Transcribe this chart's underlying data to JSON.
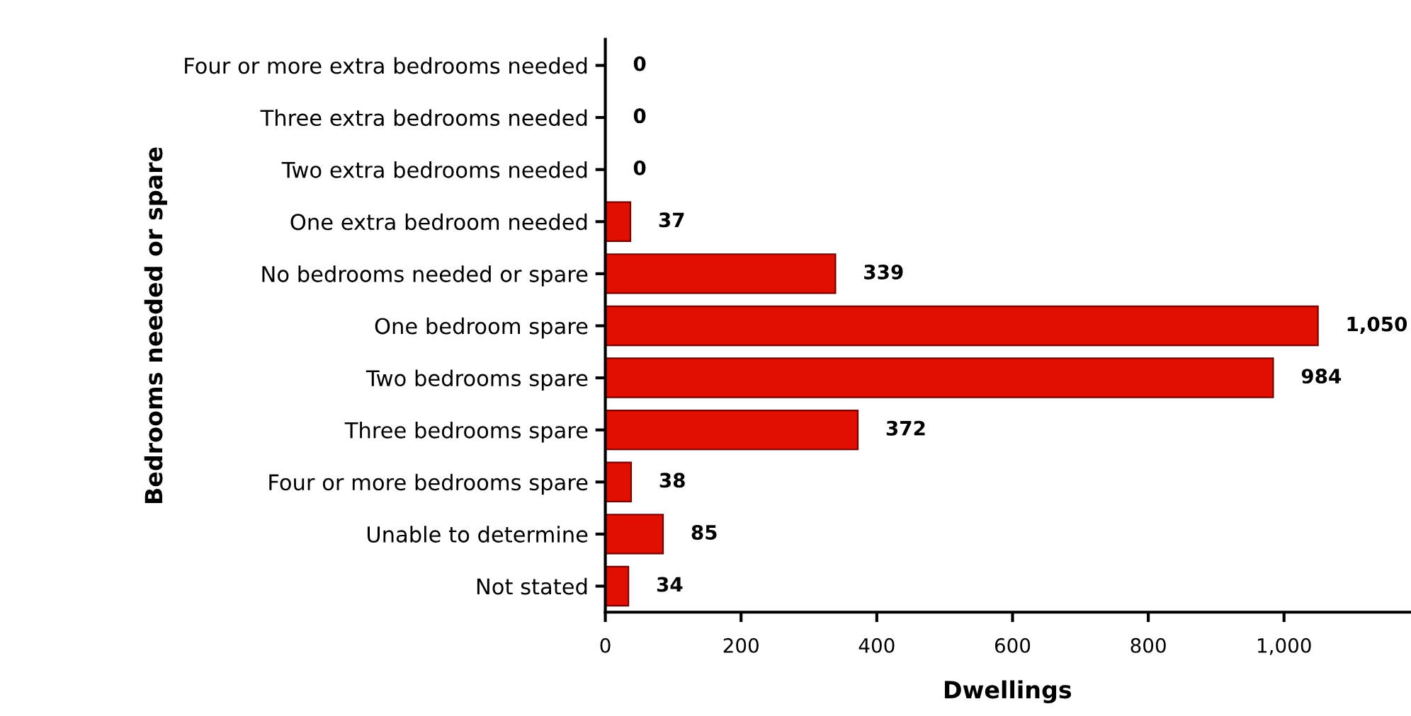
{
  "chart_data": {
    "type": "bar",
    "orientation": "horizontal",
    "xlabel": "Dwellings",
    "ylabel": "Bedrooms needed or spare",
    "categories": [
      "Four or more extra bedrooms needed",
      "Three extra bedrooms needed",
      "Two extra bedrooms needed",
      "One extra bedroom needed",
      "No bedrooms needed or spare",
      "One bedroom spare",
      "Two bedrooms spare",
      "Three bedrooms spare",
      "Four or more bedrooms spare",
      "Unable to determine",
      "Not stated"
    ],
    "values": [
      0,
      0,
      0,
      37,
      339,
      1050,
      984,
      372,
      38,
      85,
      34
    ],
    "value_labels": [
      "0",
      "0",
      "0",
      "37",
      "339",
      "1,050",
      "984",
      "372",
      "38",
      "85",
      "34"
    ],
    "color": "#e00f00",
    "xlim": [
      0,
      1185
    ],
    "xticks": [
      0,
      200,
      400,
      600,
      800,
      {
        "value": 1000,
        "label": "1,000"
      }
    ],
    "grid": false,
    "legend": false
  }
}
